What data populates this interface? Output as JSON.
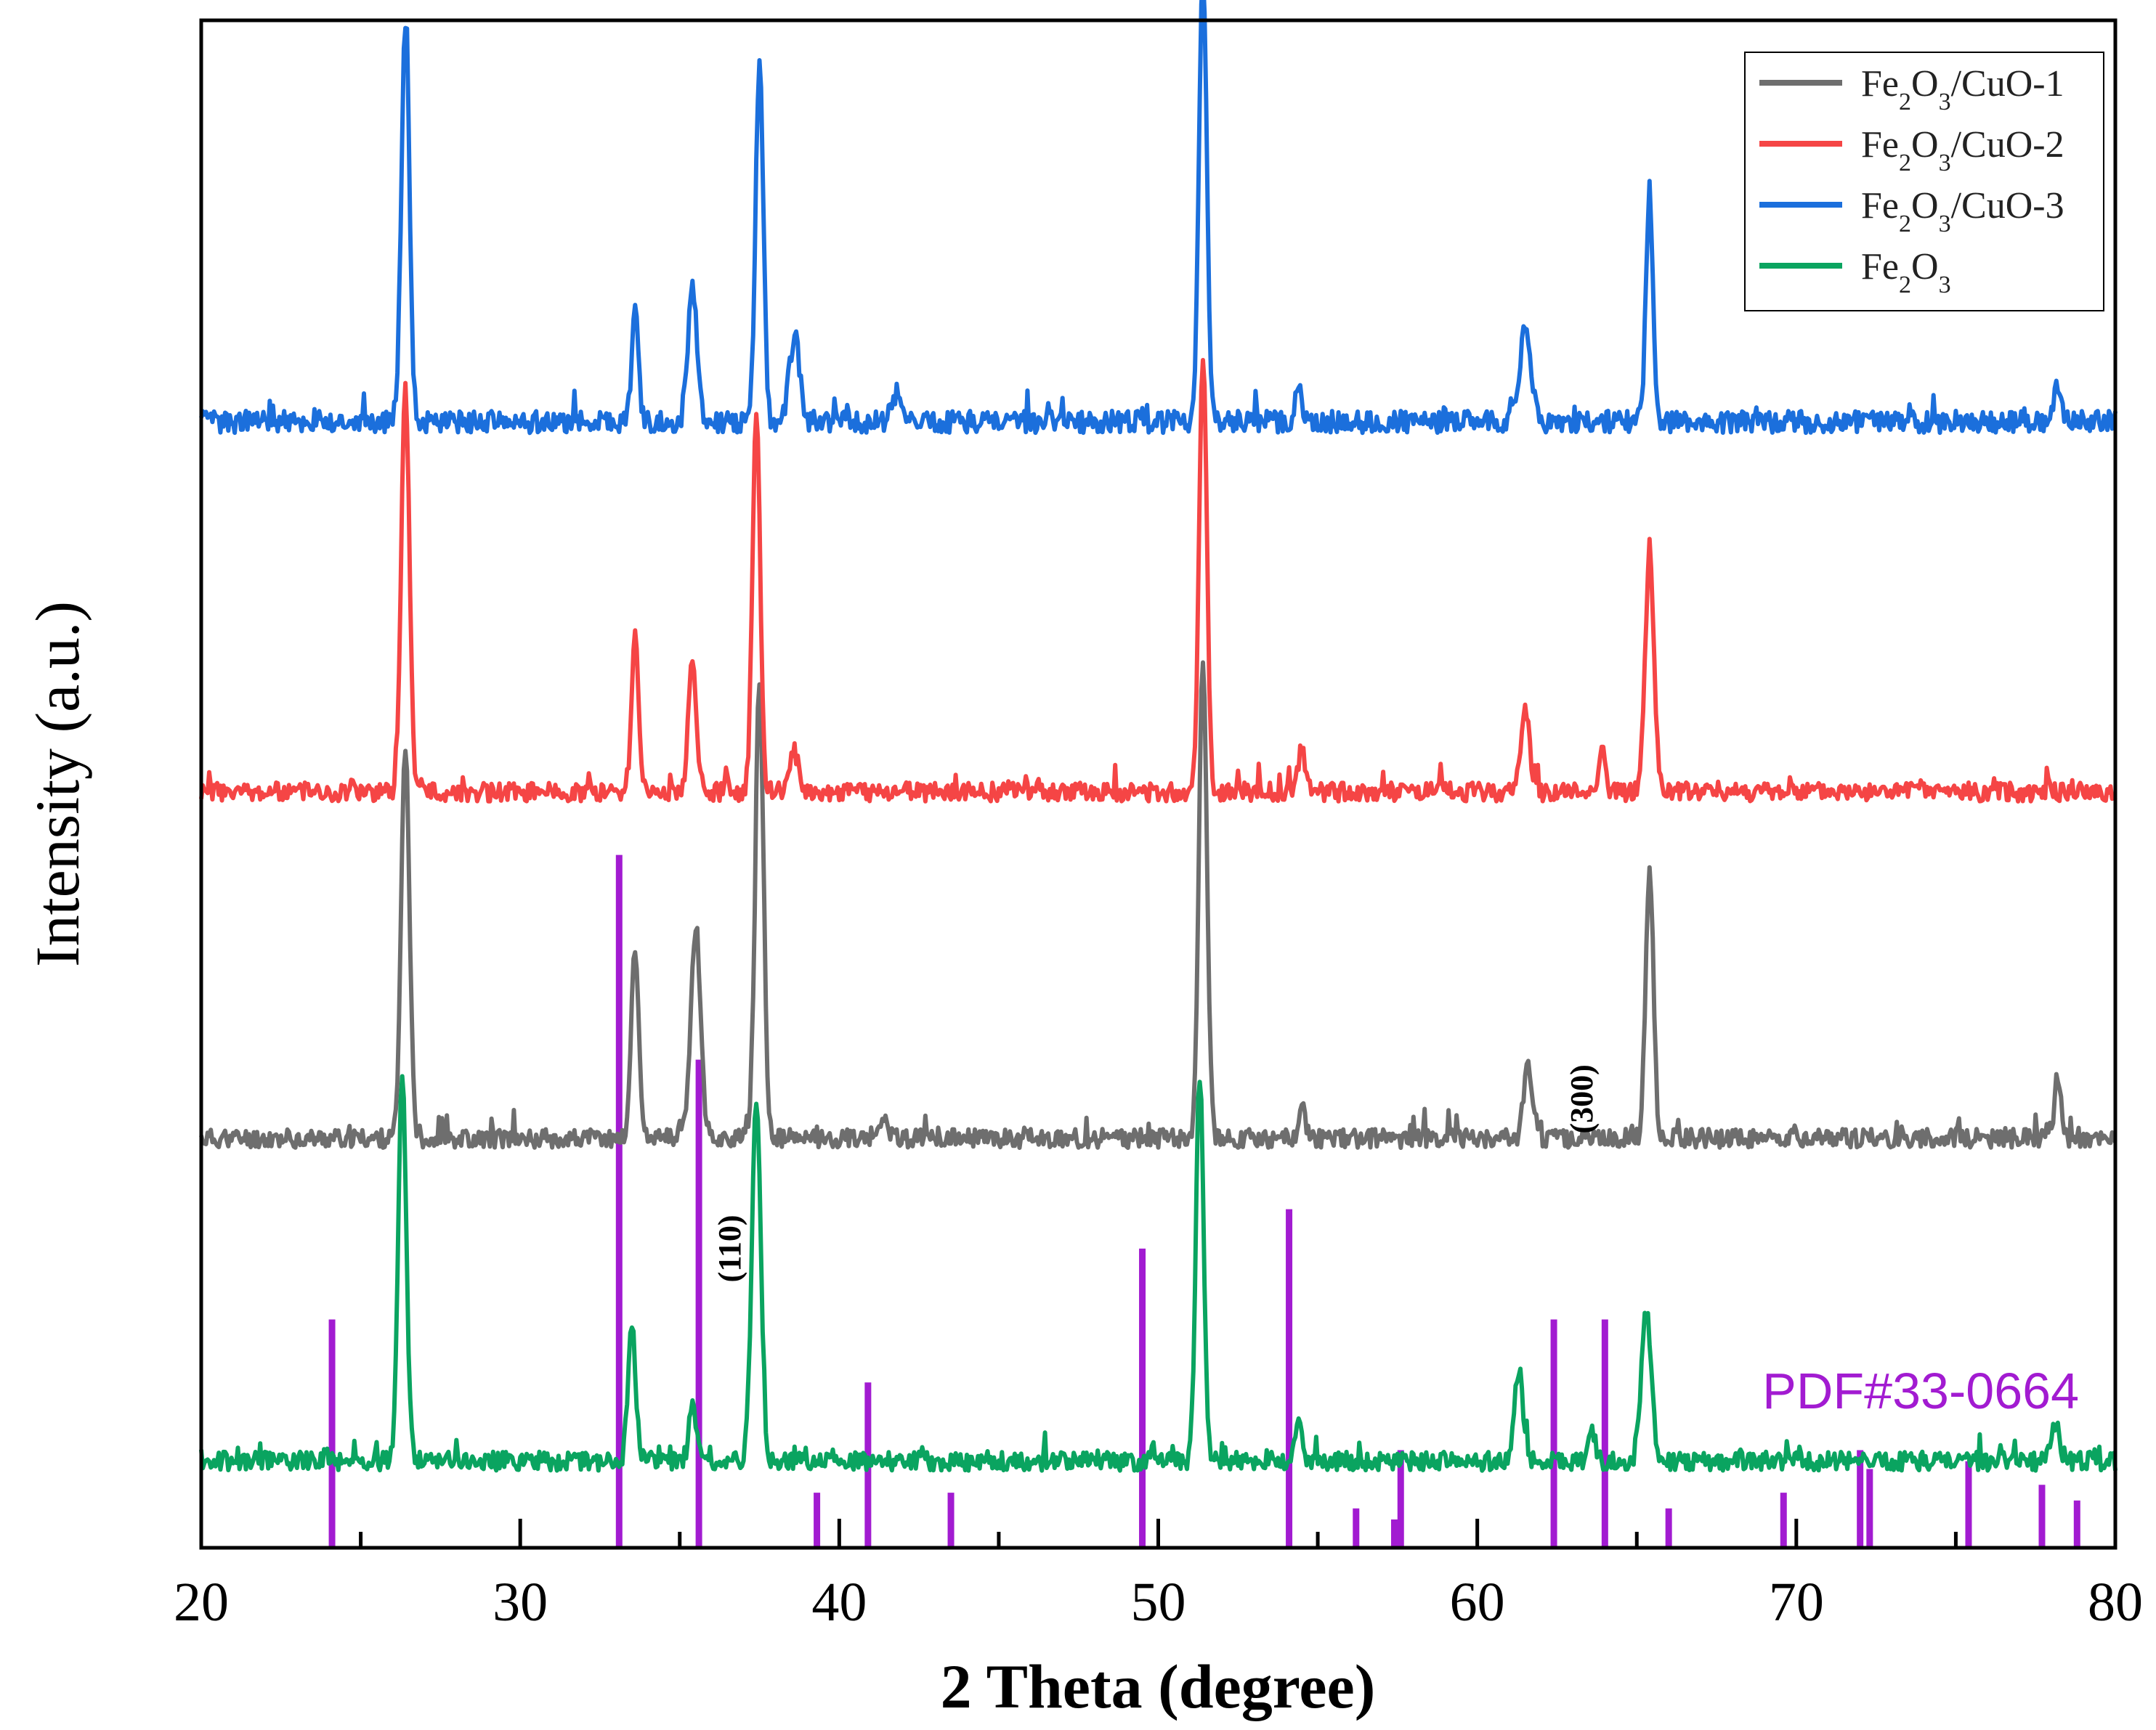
{
  "chart_data": {
    "type": "line",
    "xlabel": "2 Theta (degree)",
    "ylabel": "Intensity (a.u.)",
    "xlim": [
      20,
      80
    ],
    "x_ticks": [
      20,
      30,
      40,
      50,
      60,
      70,
      80
    ],
    "x_tick_labels": [
      "20",
      "30",
      "40",
      "50",
      "60",
      "70",
      "80"
    ],
    "yticks_shown": false,
    "legend_position": "top-right",
    "series": [
      {
        "name": "Fe2O3/CuO-1",
        "label_parts": [
          "Fe",
          "2",
          "O",
          "3",
          "/CuO-1"
        ],
        "color": "#6e6e6e",
        "baseline": 2.6,
        "noise": 0.06,
        "seed": 11,
        "peaks": [
          [
            26.4,
            2.5,
            0.18
          ],
          [
            33.6,
            1.2,
            0.17
          ],
          [
            35.5,
            1.35,
            0.22
          ],
          [
            37.5,
            2.9,
            0.18
          ],
          [
            41.4,
            0.14,
            0.2
          ],
          [
            51.4,
            3.05,
            0.18
          ],
          [
            54.5,
            0.22,
            0.15
          ],
          [
            61.6,
            0.45,
            0.2
          ],
          [
            65.4,
            1.72,
            0.17
          ],
          [
            78.2,
            0.4,
            0.15
          ]
        ]
      },
      {
        "name": "Fe2O3/CuO-2",
        "label_parts": [
          "Fe",
          "2",
          "O",
          "3",
          "/CuO-2"
        ],
        "color": "#f54545",
        "baseline": 4.8,
        "noise": 0.06,
        "seed": 23,
        "peaks": [
          [
            26.4,
            2.55,
            0.18
          ],
          [
            33.6,
            1.0,
            0.16
          ],
          [
            35.4,
            0.82,
            0.18
          ],
          [
            37.4,
            2.45,
            0.17
          ],
          [
            38.6,
            0.25,
            0.2
          ],
          [
            51.4,
            2.8,
            0.17
          ],
          [
            54.5,
            0.28,
            0.15
          ],
          [
            61.5,
            0.52,
            0.2
          ],
          [
            63.9,
            0.3,
            0.14
          ],
          [
            65.4,
            1.45,
            0.2
          ]
        ]
      },
      {
        "name": "Fe2O3/CuO-3",
        "label_parts": [
          "Fe",
          "2",
          "O",
          "3",
          "/CuO-3"
        ],
        "color": "#1b6fdc",
        "baseline": 7.15,
        "noise": 0.07,
        "seed": 37,
        "peaks": [
          [
            26.4,
            2.55,
            0.18
          ],
          [
            33.6,
            0.7,
            0.15
          ],
          [
            35.4,
            0.85,
            0.2
          ],
          [
            37.5,
            2.3,
            0.17
          ],
          [
            38.6,
            0.55,
            0.22
          ],
          [
            41.8,
            0.18,
            0.2
          ],
          [
            51.4,
            2.9,
            0.17
          ],
          [
            54.4,
            0.22,
            0.15
          ],
          [
            61.5,
            0.6,
            0.25
          ],
          [
            65.4,
            1.4,
            0.16
          ],
          [
            78.2,
            0.25,
            0.15
          ]
        ]
      },
      {
        "name": "Fe2O3",
        "label_parts": [
          "Fe",
          "2",
          "O",
          "3",
          ""
        ],
        "color": "#0aa460",
        "baseline": 0.55,
        "noise": 0.06,
        "seed": 53,
        "peaks": [
          [
            26.3,
            2.45,
            0.18
          ],
          [
            33.5,
            0.85,
            0.17
          ],
          [
            35.4,
            0.35,
            0.16
          ],
          [
            37.4,
            2.3,
            0.2
          ],
          [
            51.3,
            2.45,
            0.17
          ],
          [
            54.4,
            0.3,
            0.14
          ],
          [
            61.3,
            0.6,
            0.18
          ],
          [
            63.6,
            0.2,
            0.14
          ],
          [
            65.3,
            0.95,
            0.22
          ],
          [
            78.1,
            0.25,
            0.2
          ]
        ]
      }
    ],
    "reference_pattern": {
      "label": "PDF#33-0664",
      "color": "#a21bd1",
      "lines": [
        [
          24.1,
          1.45
        ],
        [
          33.1,
          4.4
        ],
        [
          35.6,
          3.1
        ],
        [
          39.3,
          0.35
        ],
        [
          40.9,
          1.05
        ],
        [
          43.5,
          0.35
        ],
        [
          49.5,
          1.9
        ],
        [
          54.1,
          2.15
        ],
        [
          56.2,
          0.25
        ],
        [
          57.4,
          0.18
        ],
        [
          57.6,
          0.62
        ],
        [
          62.4,
          1.45
        ],
        [
          64.0,
          1.45
        ],
        [
          66.0,
          0.25
        ],
        [
          69.6,
          0.35
        ],
        [
          72.0,
          0.62
        ],
        [
          72.3,
          0.5
        ],
        [
          75.4,
          0.55
        ],
        [
          77.7,
          0.4
        ],
        [
          78.8,
          0.3
        ]
      ]
    },
    "annotations": [
      {
        "text": "(110)",
        "x": 36.9,
        "y": 1.9
      },
      {
        "text": "(300)",
        "x": 63.6,
        "y": 2.85
      }
    ],
    "ylim": [
      0,
      9.7
    ]
  }
}
